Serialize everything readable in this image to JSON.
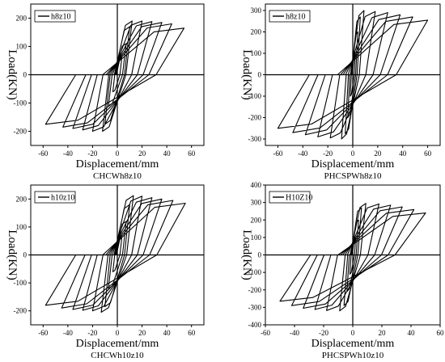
{
  "panels": [
    {
      "caption": "CHCWh8z10",
      "xlabel": "Displacement/mm",
      "ylabel": "Load(KN)",
      "legend": "h8z10",
      "x_ticks": [
        -60,
        -40,
        -20,
        0,
        20,
        40,
        60
      ],
      "y_ticks": [
        -200,
        -100,
        0,
        100,
        200
      ],
      "xlim": [
        -70,
        70
      ],
      "ylim": [
        -250,
        250
      ],
      "series": [
        {
          "name": "h8z10",
          "peaks": [
            [
              3.6,
              60,
              -3.6,
              -60
            ],
            [
              7.2,
              110,
              -7.2,
              -110
            ],
            [
              10,
              170,
              -10,
              -175
            ],
            [
              12,
              190,
              -12,
              -200
            ],
            [
              20,
              190,
              -20,
              -200
            ],
            [
              28,
              188,
              -28,
              -195
            ],
            [
              36,
              185,
              -36,
              -190
            ],
            [
              44,
              180,
              -44,
              -185
            ],
            [
              54,
              165,
              -58,
              -175
            ]
          ]
        }
      ]
    },
    {
      "caption": "PHCSPWh8z10",
      "xlabel": "Displacement/mm",
      "ylabel": "Load(KN)",
      "legend": "h8z10",
      "x_ticks": [
        -60,
        -40,
        -20,
        0,
        20,
        40,
        60
      ],
      "y_ticks": [
        -300,
        -200,
        -100,
        0,
        100,
        200,
        300
      ],
      "xlim": [
        -70,
        70
      ],
      "ylim": [
        -330,
        330
      ],
      "series": [
        {
          "name": "h8z10",
          "peaks": [
            [
              2,
              100,
              -2,
              -100
            ],
            [
              4,
              200,
              -4,
              -200
            ],
            [
              6,
              270,
              -6,
              -275
            ],
            [
              9,
              300,
              -9,
              -300
            ],
            [
              18,
              295,
              -18,
              -295
            ],
            [
              28,
              290,
              -28,
              -290
            ],
            [
              38,
              280,
              -38,
              -280
            ],
            [
              48,
              270,
              -48,
              -270
            ],
            [
              60,
              255,
              -60,
              -250
            ]
          ]
        }
      ]
    },
    {
      "caption": "CHCWh10z10",
      "xlabel": "Displacement/mm",
      "ylabel": "Load(KN)",
      "legend": "h10z10",
      "x_ticks": [
        -60,
        -40,
        -20,
        0,
        20,
        40,
        60
      ],
      "y_ticks": [
        -200,
        -100,
        0,
        100,
        200
      ],
      "xlim": [
        -70,
        70
      ],
      "ylim": [
        -250,
        250
      ],
      "series": [
        {
          "name": "h10z10",
          "peaks": [
            [
              3.6,
              60,
              -3.6,
              -60
            ],
            [
              7.2,
              120,
              -7.2,
              -120
            ],
            [
              10,
              180,
              -10,
              -185
            ],
            [
              13,
              212,
              -13,
              -205
            ],
            [
              20,
              210,
              -20,
              -200
            ],
            [
              28,
              205,
              -28,
              -198
            ],
            [
              36,
              200,
              -36,
              -195
            ],
            [
              45,
              195,
              -45,
              -190
            ],
            [
              55,
              185,
              -58,
              -180
            ]
          ]
        }
      ]
    },
    {
      "caption": "PHCSPWh10z10",
      "xlabel": "Displacement/mm",
      "ylabel": "Load(KN)",
      "legend": "H10Z10",
      "x_ticks": [
        -60,
        -40,
        -20,
        0,
        20,
        40,
        60
      ],
      "y_ticks": [
        -400,
        -300,
        -200,
        -100,
        0,
        100,
        200,
        300,
        400
      ],
      "xlim": [
        -60,
        60
      ],
      "ylim": [
        -400,
        400
      ],
      "series": [
        {
          "name": "H10Z10",
          "peaks": [
            [
              2,
              100,
              -2,
              -110
            ],
            [
              4,
              200,
              -4,
              -210
            ],
            [
              6,
              270,
              -6,
              -290
            ],
            [
              9,
              295,
              -9,
              -320
            ],
            [
              18,
              292,
              -18,
              -318
            ],
            [
              26,
              285,
              -26,
              -312
            ],
            [
              34,
              275,
              -34,
              -305
            ],
            [
              42,
              260,
              -42,
              -290
            ],
            [
              50,
              240,
              -50,
              -265
            ]
          ]
        }
      ]
    }
  ],
  "chart_data": [
    {
      "type": "line",
      "title": "CHCWh8z10",
      "xlabel": "Displacement/mm",
      "ylabel": "Load(KN)",
      "xlim": [
        -70,
        70
      ],
      "ylim": [
        -250,
        250
      ],
      "series": [
        {
          "name": "h8z10"
        }
      ]
    },
    {
      "type": "line",
      "title": "PHCSPWh8z10",
      "xlabel": "Displacement/mm",
      "ylabel": "Load(KN)",
      "xlim": [
        -70,
        70
      ],
      "ylim": [
        -330,
        330
      ],
      "series": [
        {
          "name": "h8z10"
        }
      ]
    },
    {
      "type": "line",
      "title": "CHCWh10z10",
      "xlabel": "Displacement/mm",
      "ylabel": "Load(KN)",
      "xlim": [
        -70,
        70
      ],
      "ylim": [
        -250,
        250
      ],
      "series": [
        {
          "name": "h10z10"
        }
      ]
    },
    {
      "type": "line",
      "title": "PHCSPWh10z10",
      "xlabel": "Displacement/mm",
      "ylabel": "Load(KN)",
      "xlim": [
        -60,
        60
      ],
      "ylim": [
        -400,
        400
      ],
      "series": [
        {
          "name": "H10Z10"
        }
      ]
    }
  ]
}
